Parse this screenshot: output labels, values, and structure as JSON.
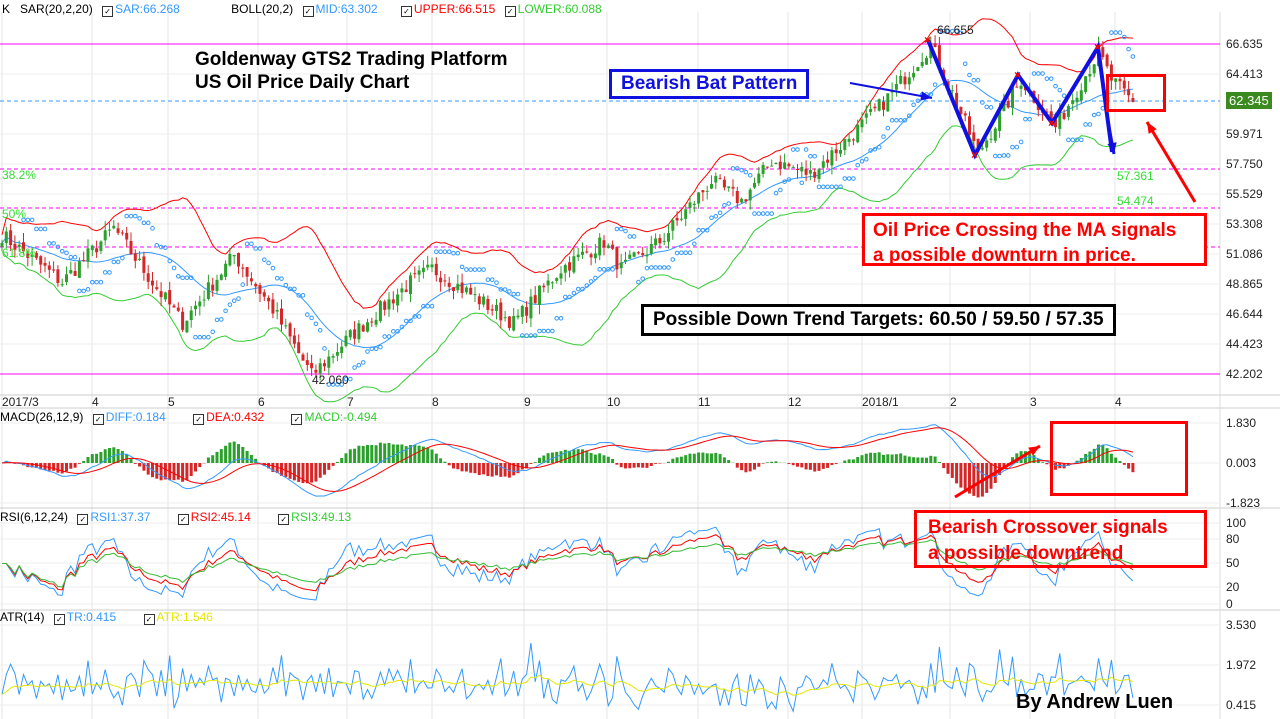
{
  "header": {
    "k": "K",
    "sar_label": "SAR(20,2,20)",
    "sar": "SAR:66.268",
    "boll_label": "BOLL(20,2)",
    "mid": "MID:63.302",
    "upper": "UPPER:66.515",
    "lower": "LOWER:60.088"
  },
  "macd": {
    "label": "MACD(26,12,9)",
    "diff": "DIFF:0.184",
    "dea": "DEA:0.432",
    "macd": "MACD:-0.494",
    "axis": [
      "1.830",
      "0.003",
      "-1.823"
    ]
  },
  "rsi": {
    "label": "RSI(6,12,24)",
    "rsi1": "RSI1:37.37",
    "rsi2": "RSI2:45.14",
    "rsi3": "RSI3:49.13",
    "axis": [
      "100",
      "80",
      "50",
      "20",
      "0"
    ]
  },
  "atr": {
    "label": "ATR(14)",
    "tr": "TR:0.415",
    "atr": "ATR:1.546",
    "axis": [
      "3.530",
      "1.972",
      "0.415"
    ]
  },
  "price_axis": [
    "66.635",
    "64.413",
    "62.345",
    "59.971",
    "57.750",
    "55.529",
    "53.308",
    "51.086",
    "48.865",
    "46.644",
    "44.423",
    "42.202"
  ],
  "current_price": "62.345",
  "dates": [
    "2017/3",
    "4",
    "5",
    "6",
    "7",
    "8",
    "9",
    "10",
    "11",
    "12",
    "2018/1",
    "2",
    "3",
    "4"
  ],
  "fib": {
    "l382": "38.2%",
    "l50": "50%",
    "l618": "61.8%",
    "v1": "57.361",
    "v2": "54.474"
  },
  "marks": {
    "low": "42.060",
    "high": "66.655"
  },
  "annotations": {
    "title1": "Goldenway GTS2 Trading Platform",
    "title2": "US Oil Price Daily Chart",
    "bat": "Bearish Bat Pattern",
    "ma1": "Oil Price Crossing the MA signals",
    "ma2": "a possible downturn in price.",
    "targets": "Possible Down Trend Targets: 60.50 / 59.50 / 57.35",
    "cross1": "Bearish Crossover signals",
    "cross2": "a possible downtrend",
    "author": "By Andrew Luen"
  },
  "colors": {
    "up": "#2ca02c",
    "down": "#d62728",
    "sar": "#3399ff",
    "upper": "#ff0000",
    "lower": "#33cc33",
    "mid": "#3399ff",
    "fib": "#ff00ff"
  },
  "chart_data": {
    "type": "candlestick",
    "ylim": [
      42.202,
      66.635
    ],
    "price_waypoints": [
      [
        0,
        52.5
      ],
      [
        14,
        49
      ],
      [
        26,
        53
      ],
      [
        35,
        49
      ],
      [
        42,
        46
      ],
      [
        54,
        51
      ],
      [
        63,
        47
      ],
      [
        72,
        42.1
      ],
      [
        81,
        45
      ],
      [
        95,
        49
      ],
      [
        100,
        50
      ],
      [
        119,
        46
      ],
      [
        130,
        50
      ],
      [
        140,
        52
      ],
      [
        144,
        50
      ],
      [
        153,
        52
      ],
      [
        165,
        56.5
      ],
      [
        172,
        55
      ],
      [
        179,
        58
      ],
      [
        188,
        57
      ],
      [
        198,
        60
      ],
      [
        207,
        63
      ],
      [
        216,
        66.6
      ],
      [
        221,
        63
      ],
      [
        227,
        58.5
      ],
      [
        237,
        64
      ],
      [
        245,
        60.5
      ],
      [
        255,
        66
      ],
      [
        258,
        64
      ],
      [
        263,
        62.3
      ]
    ]
  }
}
